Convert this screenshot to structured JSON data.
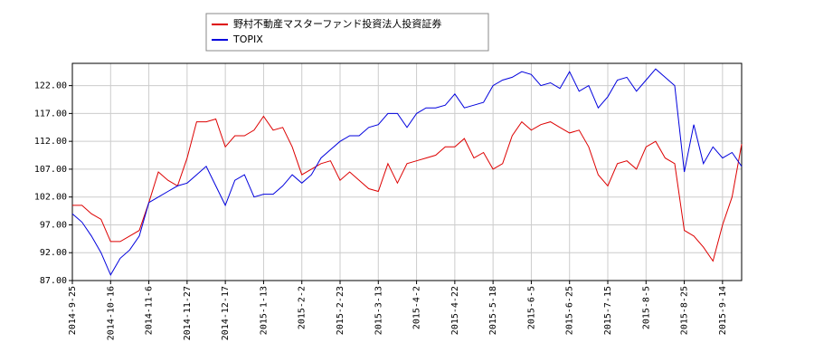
{
  "chart_data": {
    "type": "line",
    "categories": [
      "2014-9-25",
      null,
      null,
      null,
      "2014-10-16",
      null,
      null,
      null,
      "2014-11-6",
      null,
      null,
      null,
      "2014-11-27",
      null,
      null,
      null,
      "2014-12-17",
      null,
      null,
      null,
      "2015-1-13",
      null,
      null,
      null,
      "2015-2-2",
      null,
      null,
      null,
      "2015-2-23",
      null,
      null,
      null,
      "2015-3-13",
      null,
      null,
      null,
      "2015-4-2",
      null,
      null,
      null,
      "2015-4-22",
      null,
      null,
      null,
      "2015-5-18",
      null,
      null,
      null,
      "2015-6-5",
      null,
      null,
      null,
      "2015-6-25",
      null,
      null,
      null,
      "2015-7-15",
      null,
      null,
      null,
      "2015-8-5",
      null,
      null,
      null,
      "2015-8-25",
      null,
      null,
      null,
      "2015-9-14",
      null,
      null
    ],
    "series": [
      {
        "name": "野村不動産マスターファンド投資法人投資証券",
        "color": "#dd0000",
        "values": [
          100.5,
          100.5,
          99,
          98,
          94,
          94,
          95,
          96,
          101,
          106.5,
          105,
          104,
          109,
          115.5,
          115.5,
          116,
          111,
          113,
          113,
          114,
          116.5,
          114,
          114.5,
          111,
          106,
          107,
          108,
          108.5,
          105,
          106.5,
          105,
          103.5,
          103,
          108,
          104.5,
          108,
          108.5,
          109,
          109.5,
          111,
          111,
          112.5,
          109,
          110,
          107,
          108,
          113,
          115.5,
          114,
          115,
          115.5,
          114.5,
          113.5,
          114,
          111,
          106,
          104,
          108,
          108.5,
          107,
          111,
          112,
          109,
          108,
          96,
          95,
          93,
          90.5,
          97,
          102,
          111.5
        ]
      },
      {
        "name": "TOPIX",
        "color": "#0000dd",
        "values": [
          99,
          97.5,
          95,
          92,
          88,
          91,
          92.5,
          95,
          101,
          102,
          103,
          104,
          104.5,
          106,
          107.5,
          104,
          100.5,
          105,
          106,
          102,
          102.5,
          102.5,
          104,
          106,
          104.5,
          106,
          109,
          110.5,
          112,
          113,
          113,
          114.5,
          115,
          117,
          117,
          114.5,
          117,
          118,
          118,
          118.5,
          120.5,
          118,
          118.5,
          119,
          122,
          123,
          123.5,
          124.5,
          124,
          122,
          122.5,
          121.5,
          124.5,
          121,
          122,
          118,
          120,
          123,
          123.5,
          121,
          123,
          125,
          123.5,
          122,
          106.5,
          115,
          108,
          111,
          109,
          110,
          107.5
        ]
      }
    ],
    "ylim": [
      87,
      126
    ],
    "yticks": [
      {
        "value": 87,
        "label": "87.00"
      },
      {
        "value": 92,
        "label": "92.00"
      },
      {
        "value": 97,
        "label": "97.00"
      },
      {
        "value": 102,
        "label": "102.00"
      },
      {
        "value": 107,
        "label": "107.00"
      },
      {
        "value": 112,
        "label": "112.00"
      },
      {
        "value": 117,
        "label": "117.00"
      },
      {
        "value": 122,
        "label": "122.00"
      }
    ],
    "grid": true
  }
}
